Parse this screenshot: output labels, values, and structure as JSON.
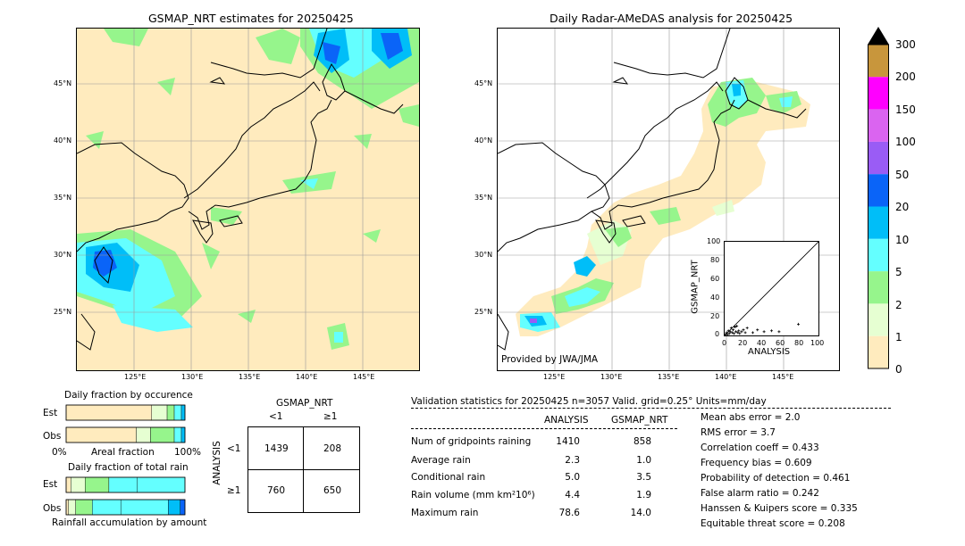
{
  "left_map": {
    "title": "GSMAP_NRT estimates for 20250425"
  },
  "right_map": {
    "title": "Daily Radar-AMeDAS analysis for 20250425",
    "credit": "Provided by JWA/JMA"
  },
  "map_axes": {
    "lon_ticks": [
      "125°E",
      "130°E",
      "135°E",
      "140°E",
      "145°E"
    ],
    "lat_ticks": [
      "45°N",
      "40°N",
      "35°N",
      "30°N",
      "25°N"
    ]
  },
  "colorbar": {
    "labels": [
      "300",
      "200",
      "150",
      "100",
      "50",
      "20",
      "10",
      "5",
      "2",
      "1",
      "0"
    ],
    "colors": [
      "#c8963c",
      "#ff00ff",
      "#da64f0",
      "#9a5cf5",
      "#0a64f8",
      "#00bef8",
      "#64ffff",
      "#96f58c",
      "#e6ffd2",
      "#ffebbe"
    ]
  },
  "scatter": {
    "xlabel": "ANALYSIS",
    "ylabel": "GSMAP_NRT",
    "ticks": [
      "0",
      "20",
      "40",
      "60",
      "80",
      "100"
    ],
    "points": [
      [
        1,
        1
      ],
      [
        2,
        3
      ],
      [
        3,
        1
      ],
      [
        4,
        5
      ],
      [
        5,
        2
      ],
      [
        6,
        4
      ],
      [
        7,
        8
      ],
      [
        8,
        3
      ],
      [
        9,
        6
      ],
      [
        10,
        2
      ],
      [
        11,
        9
      ],
      [
        12,
        4
      ],
      [
        13,
        10
      ],
      [
        14,
        3
      ],
      [
        15,
        5
      ],
      [
        16,
        2
      ],
      [
        18,
        4
      ],
      [
        20,
        6
      ],
      [
        22,
        3
      ],
      [
        24,
        8
      ],
      [
        30,
        3
      ],
      [
        35,
        6
      ],
      [
        42,
        4
      ],
      [
        50,
        5
      ],
      [
        58,
        4
      ],
      [
        78.6,
        12
      ]
    ]
  },
  "fraction_occurrence": {
    "title": "Daily fraction by occurence",
    "rows": [
      "Est",
      "Obs"
    ],
    "axis_left": "0%",
    "axis_mid": "Areal fraction",
    "axis_right": "100%"
  },
  "fraction_rain": {
    "title": "Daily fraction of total rain",
    "rows": [
      "Est",
      "Obs"
    ],
    "footer": "Rainfall accumulation by amount"
  },
  "contingency": {
    "col_title": "GSMAP_NRT",
    "row_title": "ANALYSIS",
    "col_labels": [
      "<1",
      "≥1"
    ],
    "row_labels": [
      "<1",
      "≥1"
    ],
    "cells": [
      [
        "1439",
        "208"
      ],
      [
        "760",
        "650"
      ]
    ]
  },
  "validation": {
    "header": "Validation statistics for 20250425  n=3057 Valid. grid=0.25° Units=mm/day",
    "col_analysis": "ANALYSIS",
    "col_gsmap": "GSMAP_NRT",
    "rows": [
      {
        "label": "Num of gridpoints raining",
        "analysis": "1410",
        "gsmap": "858"
      },
      {
        "label": "Average rain",
        "analysis": "2.3",
        "gsmap": "1.0"
      },
      {
        "label": "Conditional rain",
        "analysis": "5.0",
        "gsmap": "3.5"
      },
      {
        "label": "Rain volume (mm km²10⁶)",
        "analysis": "4.4",
        "gsmap": "1.9"
      },
      {
        "label": "Maximum rain",
        "analysis": "78.6",
        "gsmap": "14.0"
      }
    ],
    "scores": [
      "Mean abs error =    2.0",
      "RMS error =    3.7",
      "Correlation coeff =  0.433",
      "Frequency bias =  0.609",
      "Probability of detection =  0.461",
      "False alarm ratio =  0.242",
      "Hanssen & Kuipers score =  0.335",
      "Equitable threat score =  0.208"
    ]
  },
  "chart_data": [
    {
      "type": "scatter",
      "title": "",
      "xlabel": "ANALYSIS",
      "ylabel": "GSMAP_NRT",
      "xlim": [
        0,
        100
      ],
      "ylim": [
        0,
        100
      ],
      "points": [
        [
          1,
          1
        ],
        [
          2,
          3
        ],
        [
          3,
          1
        ],
        [
          4,
          5
        ],
        [
          5,
          2
        ],
        [
          6,
          4
        ],
        [
          7,
          8
        ],
        [
          8,
          3
        ],
        [
          9,
          6
        ],
        [
          10,
          2
        ],
        [
          11,
          9
        ],
        [
          12,
          4
        ],
        [
          13,
          10
        ],
        [
          14,
          3
        ],
        [
          15,
          5
        ],
        [
          16,
          2
        ],
        [
          18,
          4
        ],
        [
          20,
          6
        ],
        [
          22,
          3
        ],
        [
          24,
          8
        ],
        [
          30,
          3
        ],
        [
          35,
          6
        ],
        [
          42,
          4
        ],
        [
          50,
          5
        ],
        [
          58,
          4
        ],
        [
          78.6,
          12
        ]
      ]
    },
    {
      "type": "table",
      "title": "",
      "columns": [
        "<1",
        "≥1"
      ],
      "rows": [
        "<1",
        "≥1"
      ],
      "values": [
        [
          1439,
          208
        ],
        [
          760,
          650
        ]
      ]
    },
    {
      "type": "bar",
      "title": "Daily fraction by occurence",
      "categories": [
        "Est",
        "Obs"
      ],
      "series": [
        {
          "values": [
            0.72,
            0.59
          ]
        },
        {
          "values": [
            0.13,
            0.12
          ]
        },
        {
          "values": [
            0.06,
            0.2
          ]
        },
        {
          "values": [
            0.06,
            0.06
          ]
        },
        {
          "values": [
            0.03,
            0.03
          ]
        }
      ]
    },
    {
      "type": "bar",
      "title": "Daily fraction of total rain",
      "categories": [
        "Est",
        "Obs"
      ],
      "series": [
        {
          "values": [
            0.04,
            0.02
          ]
        },
        {
          "values": [
            0.12,
            0.06
          ]
        },
        {
          "values": [
            0.2,
            0.14
          ]
        },
        {
          "values": [
            0.24,
            0.24
          ]
        },
        {
          "values": [
            0.4,
            0.4
          ]
        },
        {
          "values": [
            0.0,
            0.1
          ]
        },
        {
          "values": [
            0.0,
            0.04
          ]
        }
      ]
    }
  ]
}
